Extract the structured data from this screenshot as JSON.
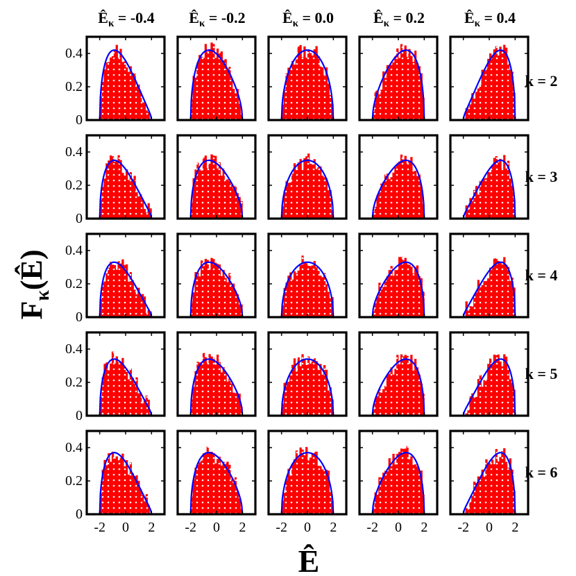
{
  "chart_data": {
    "type": "histogram-grid",
    "ylabel_main": "F",
    "ylabel_sub": "κ",
    "ylabel_arg": "(Ê)",
    "xlabel_main": "Ê",
    "column_labels": [
      "-0.4",
      "-0.2",
      "0.0",
      "0.2",
      "0.4"
    ],
    "column_label_prefix": "Ê",
    "column_label_sub": "κ",
    "column_values": [
      -0.4,
      -0.2,
      0.0,
      0.2,
      0.4
    ],
    "row_labels": [
      "k = 2",
      "k = 3",
      "k = 4",
      "k = 5",
      "k = 6"
    ],
    "xlim": [
      -3,
      3
    ],
    "ylim": [
      0,
      0.5
    ],
    "xticks": [
      -2,
      0,
      2
    ],
    "xtick_labels": [
      "-2",
      "0",
      "2"
    ],
    "yticks": [
      0,
      0.2,
      0.4
    ],
    "ytick_labels": [
      "0",
      "0.2",
      "0.4"
    ],
    "histogram_color": "#ff0000",
    "dot_color": "#ffffff",
    "curve_color": "#0000ff",
    "curve_peaks": [
      0.42,
      0.35,
      0.33,
      0.34,
      0.37
    ],
    "curve_halfwidth": 2.0,
    "curve_skew_factor": 1.8,
    "hist_bins": 26,
    "hist_noise": 0.05
  }
}
